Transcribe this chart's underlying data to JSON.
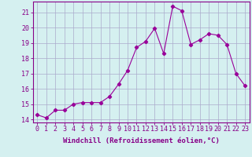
{
  "x": [
    0,
    1,
    2,
    3,
    4,
    5,
    6,
    7,
    8,
    9,
    10,
    11,
    12,
    13,
    14,
    15,
    16,
    17,
    18,
    19,
    20,
    21,
    22,
    23
  ],
  "y": [
    14.3,
    14.1,
    14.6,
    14.6,
    15.0,
    15.1,
    15.1,
    15.1,
    15.5,
    16.3,
    17.2,
    18.7,
    19.1,
    19.95,
    18.3,
    21.4,
    21.1,
    18.9,
    19.2,
    19.6,
    19.5,
    18.9,
    17.0,
    16.2
  ],
  "line_color": "#990099",
  "marker": "D",
  "marker_size": 2.2,
  "bg_color": "#d5f0f0",
  "grid_color": "#aaaacc",
  "xlabel": "Windchill (Refroidissement éolien,°C)",
  "ylabel_ticks": [
    14,
    15,
    16,
    17,
    18,
    19,
    20,
    21
  ],
  "xlim": [
    -0.5,
    23.5
  ],
  "ylim": [
    13.8,
    21.7
  ],
  "tick_color": "#880088",
  "label_color": "#880088",
  "xlabel_fontsize": 6.5,
  "tick_fontsize": 6.0,
  "spine_color": "#880088"
}
